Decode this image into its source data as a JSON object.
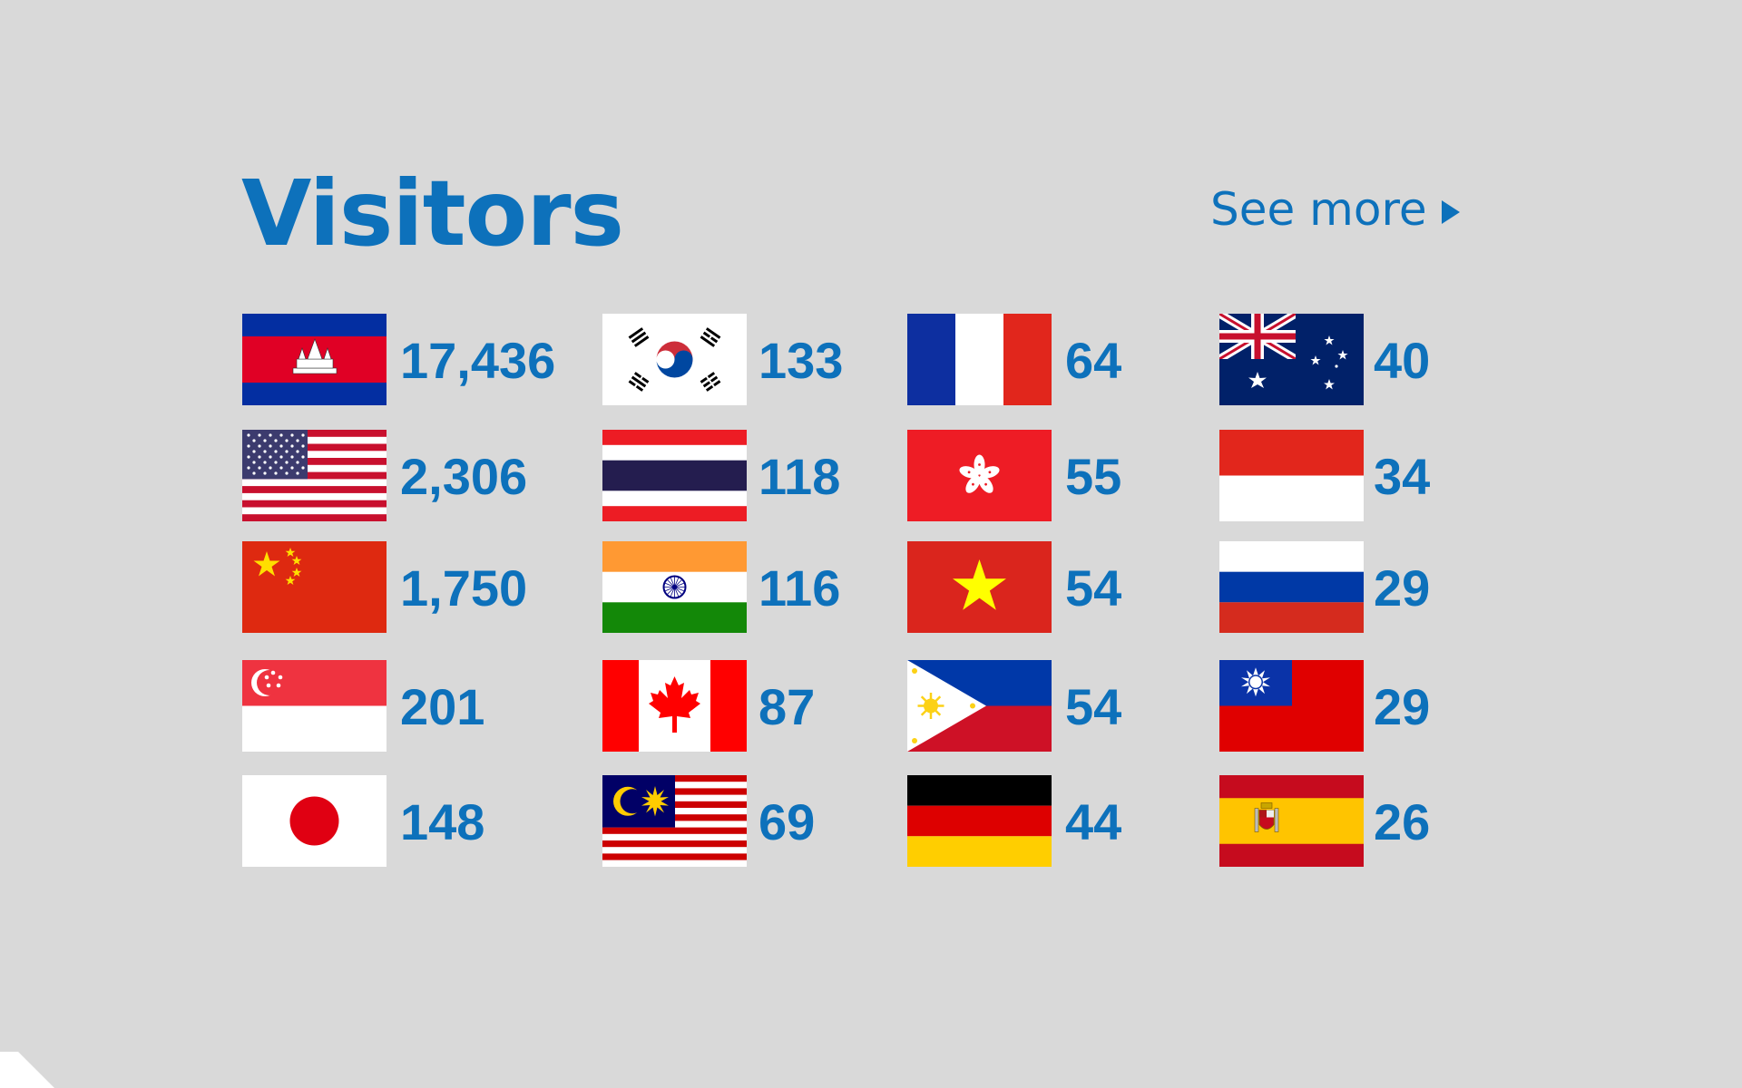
{
  "header": {
    "title": "Visitors",
    "see_more_label": "See more",
    "see_more_icon": "triangle-right-icon"
  },
  "colors": {
    "background": "#d9d9d9",
    "accent": "#0d71bb"
  },
  "countries": [
    {
      "flag": "cambodia-flag",
      "count": "17,436"
    },
    {
      "flag": "south-korea-flag",
      "count": "133"
    },
    {
      "flag": "france-flag",
      "count": "64"
    },
    {
      "flag": "australia-flag",
      "count": "40"
    },
    {
      "flag": "united-states-flag",
      "count": "2,306"
    },
    {
      "flag": "thailand-flag",
      "count": "118"
    },
    {
      "flag": "hong-kong-flag",
      "count": "55"
    },
    {
      "flag": "indonesia-flag",
      "count": "34"
    },
    {
      "flag": "china-flag",
      "count": "1,750"
    },
    {
      "flag": "india-flag",
      "count": "116"
    },
    {
      "flag": "vietnam-flag",
      "count": "54"
    },
    {
      "flag": "russia-flag",
      "count": "29"
    },
    {
      "flag": "singapore-flag",
      "count": "201"
    },
    {
      "flag": "canada-flag",
      "count": "87"
    },
    {
      "flag": "philippines-flag",
      "count": "54"
    },
    {
      "flag": "taiwan-flag",
      "count": "29"
    },
    {
      "flag": "japan-flag",
      "count": "148"
    },
    {
      "flag": "malaysia-flag",
      "count": "69"
    },
    {
      "flag": "germany-flag",
      "count": "44"
    },
    {
      "flag": "spain-flag",
      "count": "26"
    }
  ]
}
